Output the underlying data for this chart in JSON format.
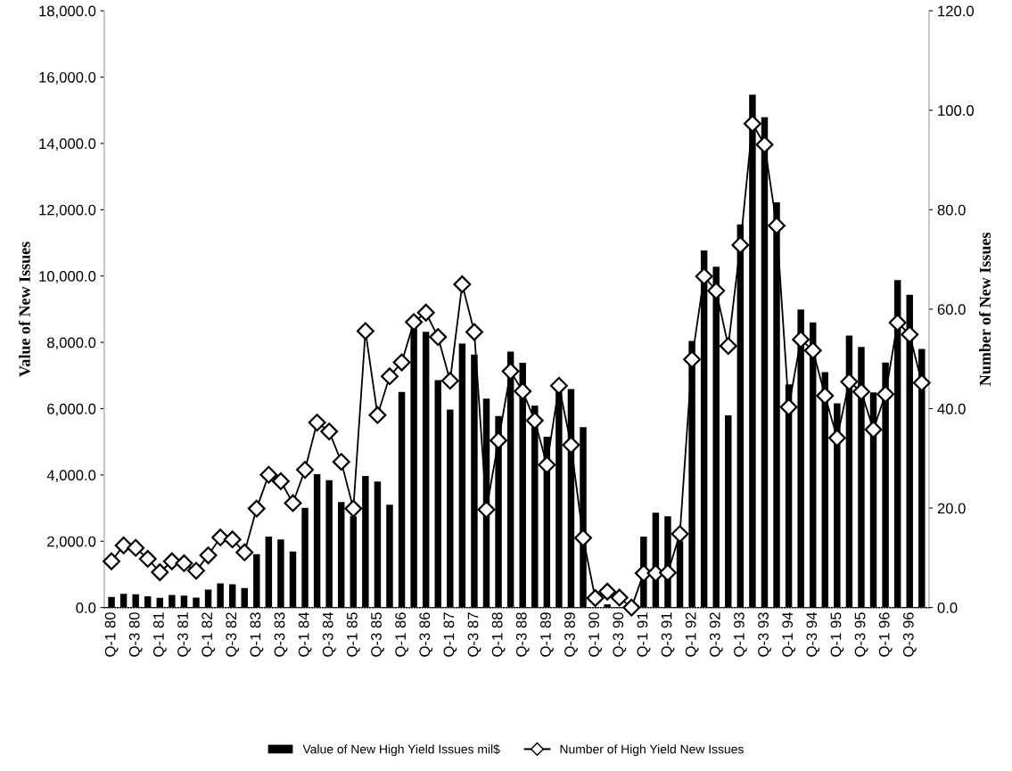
{
  "chart_data": {
    "type": "bar",
    "ylabel": "Value of New Issues",
    "y2label": "Number of New Issues",
    "categories": [
      "Q-1 80",
      null,
      "Q-3 80",
      null,
      "Q-1 81",
      null,
      "Q-3 81",
      null,
      "Q-1 82",
      null,
      "Q-3 82",
      null,
      "Q-1 83",
      null,
      "Q-3 83",
      null,
      "Q-1 84",
      null,
      "Q-3 84",
      null,
      "Q-1 85",
      null,
      "Q-3 85",
      null,
      "Q-1 86",
      null,
      "Q-3 86",
      null,
      "Q-1 87",
      null,
      "Q-3 87",
      null,
      "Q-1 88",
      null,
      "Q-3 88",
      null,
      "Q-1 89",
      null,
      "Q-3 89",
      null,
      "Q-1 90",
      null,
      "Q-3 90",
      null,
      "Q-1 91",
      null,
      "Q-3 91",
      null,
      "Q-1 92",
      null,
      "Q-3 92",
      null,
      "Q-1 93",
      null,
      "Q-3 93",
      null,
      "Q-1 94",
      null,
      "Q-3 94",
      null,
      "Q-1 95",
      null,
      "Q-3 95",
      null,
      "Q-1 96",
      null,
      "Q-3 96",
      null
    ],
    "series": [
      {
        "name": "Value of New High Yield Issues mil$",
        "color": "#000000",
        "values": [
          320,
          410,
          400,
          340,
          290,
          380,
          360,
          300,
          540,
          730,
          700,
          590,
          1610,
          2140,
          2050,
          1690,
          3010,
          4020,
          3840,
          3180,
          2750,
          3970,
          3800,
          3100,
          6500,
          8410,
          8320,
          6860,
          5970,
          7960,
          7630,
          6300,
          5780,
          7720,
          7380,
          6090,
          5150,
          6500,
          6590,
          5440,
          null,
          100,
          null,
          null,
          2140,
          2860,
          2750,
          2000,
          8040,
          10770,
          10280,
          5800,
          11560,
          15470,
          14790,
          12220,
          6730,
          8990,
          8600,
          7100,
          6160,
          8200,
          7860,
          6490,
          7390,
          9880,
          9430,
          7800
        ]
      },
      {
        "name": "Number of High Yield New Issues",
        "type": "line",
        "axis": "y2",
        "color": "#000000",
        "marker": "diamond",
        "values": [
          9.3,
          12.5,
          12.0,
          9.8,
          7.1,
          9.3,
          8.9,
          7.4,
          10.5,
          14.1,
          13.7,
          11.1,
          19.9,
          26.7,
          25.4,
          21.0,
          27.7,
          37.2,
          35.4,
          29.3,
          19.9,
          55.6,
          38.7,
          46.5,
          49.3,
          57.4,
          59.3,
          54.4,
          45.6,
          65.0,
          55.4,
          19.7,
          33.6,
          47.5,
          43.5,
          37.6,
          28.7,
          44.6,
          32.7,
          14.0,
          1.9,
          3.2,
          2.0,
          0.0,
          6.9,
          6.9,
          7.0,
          14.8,
          49.9,
          66.6,
          63.7,
          52.6,
          72.9,
          97.3,
          93.1,
          76.8,
          40.3,
          53.9,
          51.7,
          42.6,
          34.1,
          45.4,
          43.4,
          35.8,
          42.9,
          57.3,
          54.9,
          45.2
        ]
      }
    ],
    "ylim": [
      0,
      18000
    ],
    "yticks": [
      {
        "value": 0,
        "label": "0.0"
      },
      {
        "value": 2000,
        "label": "2,000.0"
      },
      {
        "value": 4000,
        "label": "4,000.0"
      },
      {
        "value": 6000,
        "label": "6,000.0"
      },
      {
        "value": 8000,
        "label": "8,000.0"
      },
      {
        "value": 10000,
        "label": "10,000.0"
      },
      {
        "value": 12000,
        "label": "12,000.0"
      },
      {
        "value": 14000,
        "label": "14,000.0"
      },
      {
        "value": 16000,
        "label": "16,000.0"
      },
      {
        "value": 18000,
        "label": "18,000.0"
      }
    ],
    "y2lim": [
      0,
      120
    ],
    "y2ticks": [
      {
        "value": 0,
        "label": "0.0"
      },
      {
        "value": 20,
        "label": "20.0"
      },
      {
        "value": 40,
        "label": "40.0"
      },
      {
        "value": 60,
        "label": "60.0"
      },
      {
        "value": 80,
        "label": "80.0"
      },
      {
        "value": 100,
        "label": "100.0"
      },
      {
        "value": 120,
        "label": "120.0"
      }
    ],
    "legend": "bottom",
    "grid": false
  }
}
